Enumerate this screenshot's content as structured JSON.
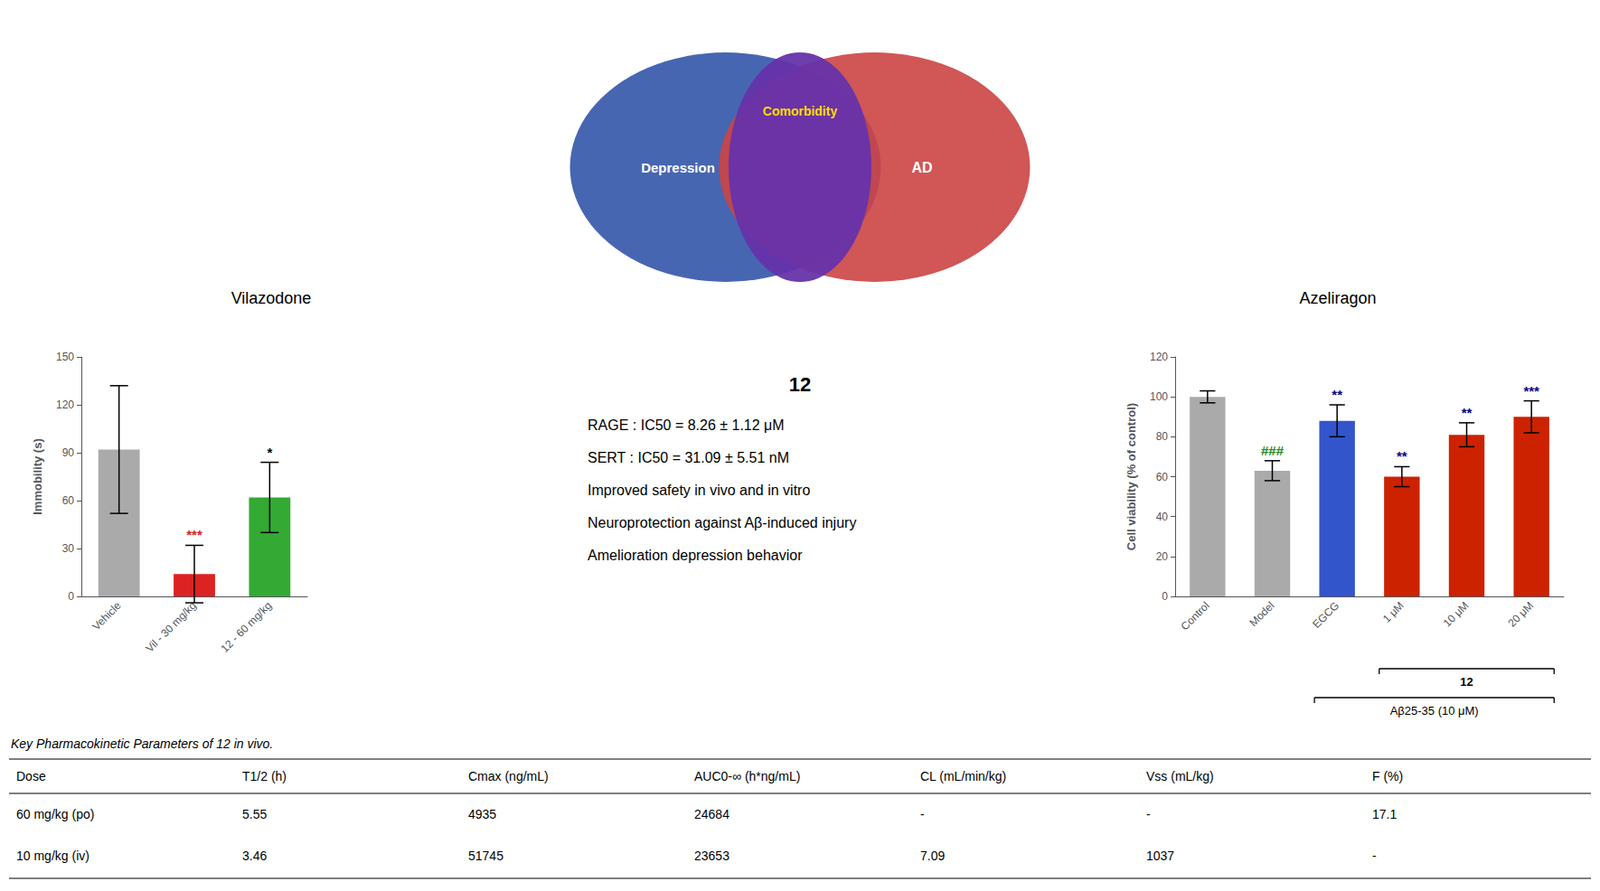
{
  "chart_data": [
    {
      "type": "bar",
      "categories": [
        "Vehicle",
        "Vil - 30 mg/kg",
        "12 - 60 mg/kg"
      ],
      "values": [
        92,
        14,
        62
      ],
      "errors": [
        40,
        18,
        22
      ],
      "colors": [
        "#aaaaaa",
        "#dd2222",
        "#33aa33"
      ],
      "ylabel": "Immobility (s)",
      "ylim": [
        0,
        150
      ],
      "yticks": [
        0,
        30,
        60,
        90,
        120,
        150
      ],
      "grid": false,
      "annotations": [
        {
          "category": "Vil - 30 mg/kg",
          "text": "***",
          "color": "#dd2222"
        },
        {
          "category": "12 - 60 mg/kg",
          "text": "*",
          "color": "black"
        }
      ]
    },
    {
      "type": "bar",
      "categories": [
        "Control",
        "Model",
        "EGCG",
        "1 μM",
        "10 μM",
        "20 μM"
      ],
      "values": [
        100,
        63,
        88,
        60,
        81,
        90
      ],
      "errors": [
        3,
        5,
        8,
        5,
        6,
        8
      ],
      "colors": [
        "#aaaaaa",
        "#aaaaaa",
        "#3355cc",
        "#cc2200",
        "#cc2200",
        "#cc2200"
      ],
      "ylabel": "Cell viability (% of control)",
      "ylim": [
        0,
        120
      ],
      "yticks": [
        0,
        20,
        40,
        60,
        80,
        100,
        120
      ],
      "grid": false,
      "annotations": [
        {
          "category": "Model",
          "text": "###",
          "color": "#228B22"
        },
        {
          "category": "EGCG",
          "text": "**",
          "color": "#000080"
        },
        {
          "category": "1 μM",
          "text": "**",
          "color": "#000080"
        },
        {
          "category": "10 μM",
          "text": "**",
          "color": "#000080"
        },
        {
          "category": "20 μM",
          "text": "***",
          "color": "#000080"
        },
        {
          "text": "12",
          "from": "1 μM",
          "to": "20 μM"
        },
        {
          "text": "Aβ25-35 (10 μM)",
          "from": "EGCG",
          "to": "20 μM"
        }
      ]
    },
    {
      "type": "venn",
      "labels": [
        "Depression",
        "Comorbidity",
        "AD"
      ],
      "colors": [
        "#3355aa",
        "#6633aa",
        "#cc4444"
      ],
      "annotations": [
        "Vilazodone",
        "Azeliragon"
      ]
    },
    {
      "type": "text",
      "title": "12",
      "annotations": [
        "RAGE : IC50 = 8.26 ± 1.12 μM",
        "SERT : IC50 = 31.09 ± 5.51 nM",
        "Improved safety in vivo and in vitro",
        "Neuroprotection against Aβ-induced injury",
        "Amelioration depression behavior"
      ]
    },
    {
      "type": "table",
      "title": "Key Pharmacokinetic Parameters of 12 in vivo.",
      "columns": [
        "Dose",
        "T1/2 (h)",
        "Cmax (ng/mL)",
        "AUC0-∞ (h*ng/mL)",
        "CL (mL/min/kg)",
        "Vss (mL/kg)",
        "F (%)"
      ],
      "rows": [
        [
          "60 mg/kg (po)",
          "5.55",
          "4935",
          "24684",
          "-",
          "-",
          "17.1"
        ],
        [
          "10 mg/kg (iv)",
          "3.46",
          "51745",
          "23653",
          "7.09",
          "1037",
          "-"
        ]
      ]
    }
  ]
}
